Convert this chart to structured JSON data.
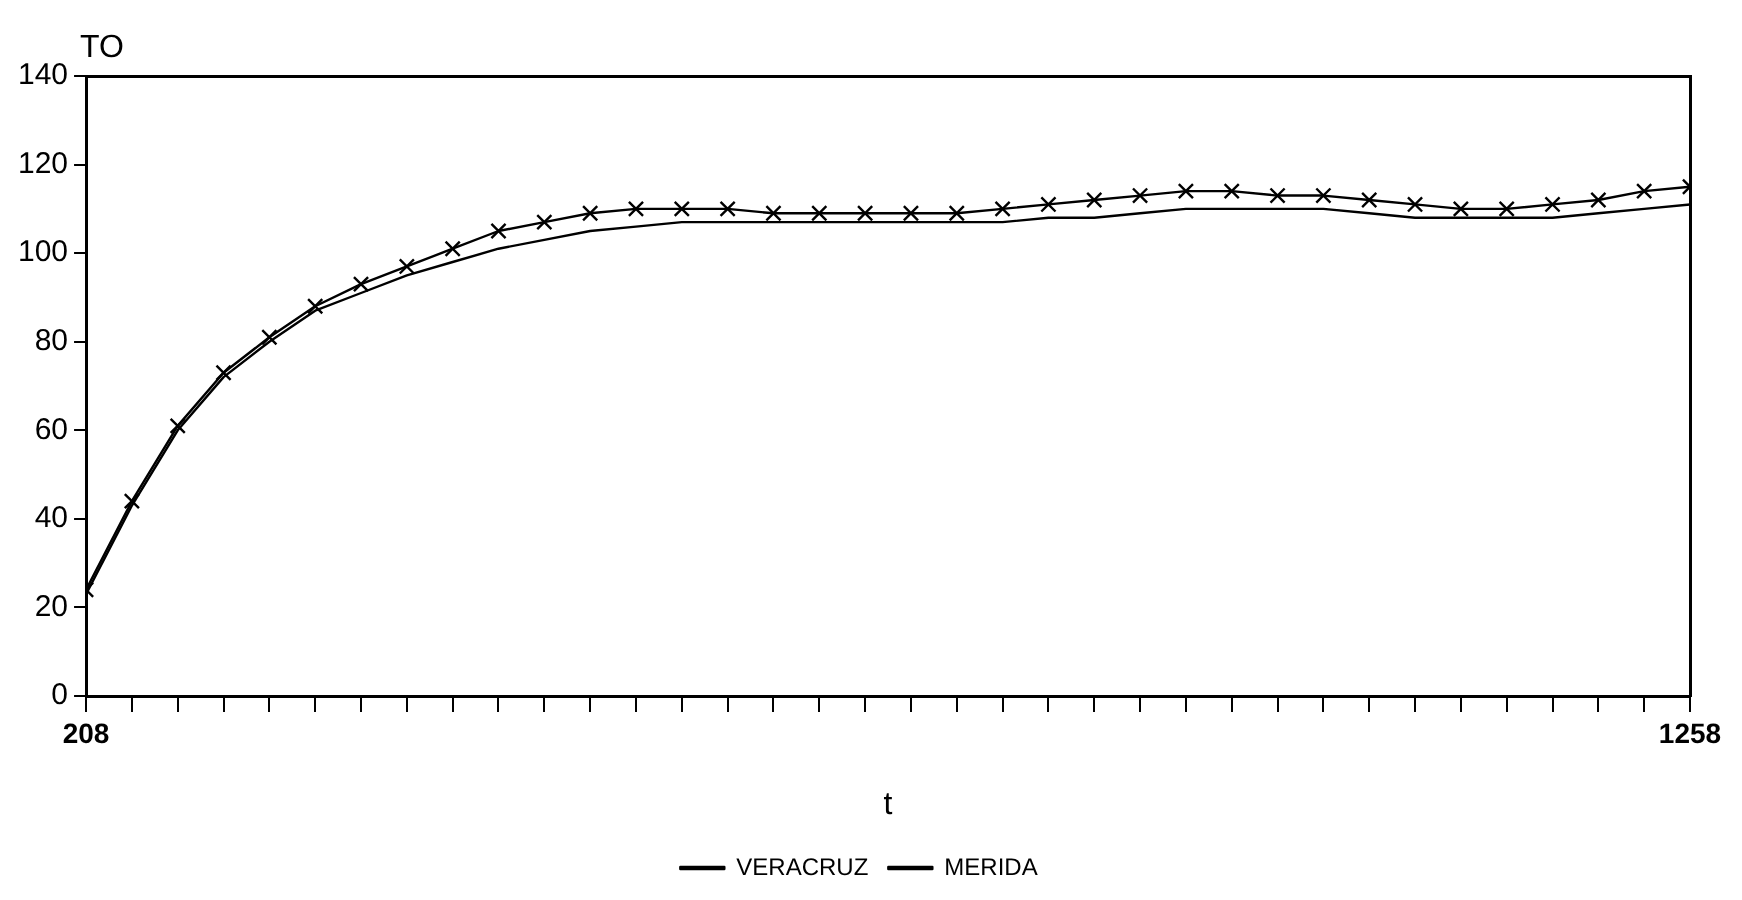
{
  "chart_data": {
    "type": "line",
    "xlabel": "t",
    "ylabel": "TO",
    "x": [
      208,
      238,
      268,
      298,
      328,
      358,
      388,
      418,
      448,
      478,
      508,
      538,
      568,
      598,
      628,
      658,
      688,
      718,
      748,
      778,
      808,
      838,
      868,
      898,
      928,
      958,
      988,
      1018,
      1048,
      1078,
      1108,
      1138,
      1168,
      1198,
      1228,
      1258
    ],
    "series": [
      {
        "name": "VERACRUZ",
        "color": "#000000",
        "marker": "none",
        "values": [
          23,
          43,
          60,
          72,
          80,
          87,
          91,
          95,
          98,
          101,
          103,
          105,
          106,
          107,
          107,
          107,
          107,
          107,
          107,
          107,
          107,
          108,
          108,
          109,
          110,
          110,
          110,
          110,
          109,
          108,
          108,
          108,
          108,
          109,
          110,
          111
        ]
      },
      {
        "name": "MERIDA",
        "color": "#000000",
        "marker": "cross",
        "values": [
          24,
          44,
          61,
          73,
          81,
          88,
          93,
          97,
          101,
          105,
          107,
          109,
          110,
          110,
          110,
          109,
          109,
          109,
          109,
          109,
          110,
          111,
          112,
          113,
          114,
          114,
          113,
          113,
          112,
          111,
          110,
          110,
          111,
          112,
          114,
          115
        ]
      }
    ],
    "xlim": [
      208,
      1258
    ],
    "xticks": [
      208,
      {
        "value": 238,
        "label": null
      },
      {
        "value": 268,
        "label": null
      },
      {
        "value": 298,
        "label": null
      },
      {
        "value": 328,
        "label": null
      },
      {
        "value": 358,
        "label": null
      },
      {
        "value": 388,
        "label": null
      },
      {
        "value": 418,
        "label": null
      },
      {
        "value": 448,
        "label": null
      },
      {
        "value": 478,
        "label": null
      },
      {
        "value": 508,
        "label": null
      },
      {
        "value": 538,
        "label": null
      },
      {
        "value": 568,
        "label": null
      },
      {
        "value": 598,
        "label": null
      },
      {
        "value": 628,
        "label": null
      },
      {
        "value": 658,
        "label": null
      },
      {
        "value": 688,
        "label": null
      },
      {
        "value": 718,
        "label": null
      },
      {
        "value": 748,
        "label": null
      },
      {
        "value": 778,
        "label": null
      },
      {
        "value": 808,
        "label": null
      },
      {
        "value": 838,
        "label": null
      },
      {
        "value": 868,
        "label": null
      },
      {
        "value": 898,
        "label": null
      },
      {
        "value": 928,
        "label": null
      },
      {
        "value": 958,
        "label": null
      },
      {
        "value": 988,
        "label": null
      },
      {
        "value": 1018,
        "label": null
      },
      {
        "value": 1048,
        "label": null
      },
      {
        "value": 1078,
        "label": null
      },
      {
        "value": 1108,
        "label": null
      },
      {
        "value": 1138,
        "label": null
      },
      {
        "value": 1168,
        "label": null
      },
      {
        "value": 1198,
        "label": null
      },
      {
        "value": 1228,
        "label": null
      },
      1258
    ],
    "ylim": [
      0,
      140
    ],
    "yticks": [
      0,
      20,
      40,
      60,
      80,
      100,
      120,
      140
    ],
    "grid": false,
    "legend": "bottom",
    "line_style": "solid"
  }
}
